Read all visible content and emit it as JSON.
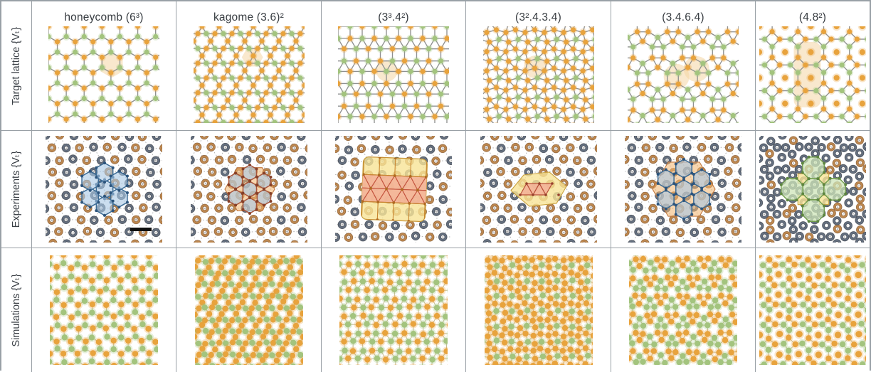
{
  "figure": {
    "columns": [
      {
        "id": "honeycomb",
        "label": "honeycomb (6³)",
        "tiling": "honeycomb"
      },
      {
        "id": "kagome",
        "label": "kagome (3.6)²",
        "tiling": "kagome"
      },
      {
        "id": "t3342",
        "label": "(3³.4²)",
        "tiling": "elongated"
      },
      {
        "id": "t32434",
        "label": "(3².4.3.4)",
        "tiling": "snub"
      },
      {
        "id": "t3464",
        "label": "(3.4.6.4)",
        "tiling": "rhombitri"
      },
      {
        "id": "t482",
        "label": "(4.8²)",
        "tiling": "truncsq"
      }
    ],
    "rows": [
      {
        "id": "target",
        "label": "Target lattice {Vₜ}"
      },
      {
        "id": "experiments",
        "label": "Experiments {Vₜ}"
      },
      {
        "id": "simulations",
        "label": "Simulations {Vₜ}"
      }
    ],
    "scalebar_column": "honeycomb",
    "palette": {
      "orange": "#e8a33d",
      "green": "#a3c47e",
      "bond": "#8f9091",
      "simBond": "#c6bd96",
      "highlight": "rgba(244,214,164,0.55)",
      "grayRing": "#657080",
      "tanRing": "#bd8850",
      "blueFill": "rgba(168,200,228,0.60)",
      "blueEdge": "#3c6b94",
      "orangeFill": "rgba(242,180,110,0.55)",
      "orangeEdge": "#c0763c",
      "yellowFill": "rgba(248,228,150,0.80)",
      "yellowEdge": "#c9a13e",
      "pinkFill": "rgba(243,176,152,0.85)",
      "pinkEdge": "#c3543e",
      "greenFill": "rgba(206,228,184,0.75)",
      "greenEdge": "#6f9a4a",
      "border": "#99a0a6",
      "scalebar": "#111111"
    }
  }
}
